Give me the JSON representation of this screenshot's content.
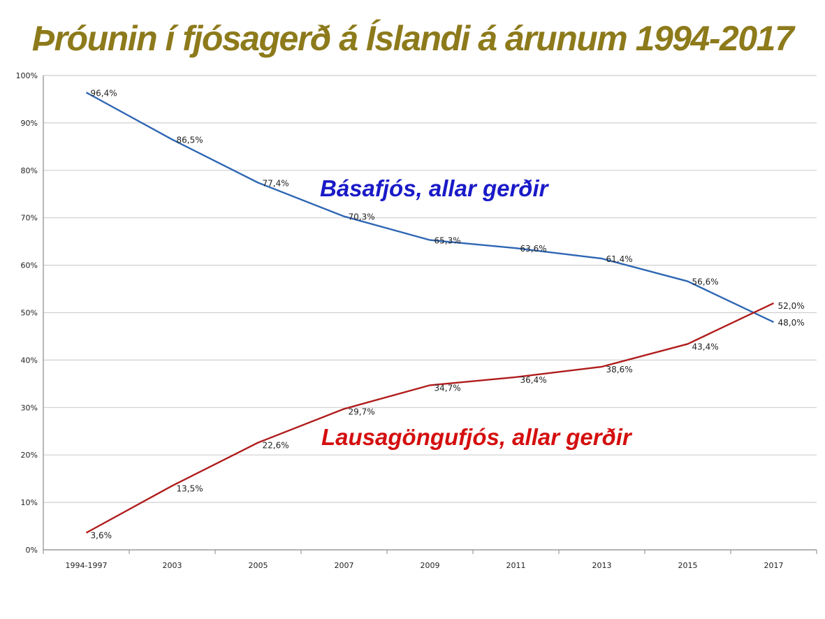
{
  "chart_data": {
    "type": "line",
    "title": "Þróunin í fjósagerð á Íslandi á árunum 1994-2017",
    "categories": [
      "1994-1997",
      "2003",
      "2005",
      "2007",
      "2009",
      "2011",
      "2013",
      "2015",
      "2017"
    ],
    "series": [
      {
        "name": "Básafjós, allar gerðir",
        "color": "#2e66b3",
        "label_color": "#1a1ac8",
        "values": [
          96.4,
          86.5,
          77.4,
          70.3,
          65.3,
          63.6,
          61.4,
          56.6,
          48.0
        ],
        "data_labels": [
          "96,4%",
          "86,5%",
          "77,4%",
          "70,3%",
          "65,3%",
          "63,6%",
          "61,4%",
          "56,6%",
          "48,0%"
        ]
      },
      {
        "name": "Lausagöngufjós, allar gerðir",
        "color": "#b01c1c",
        "label_color": "#d40f0f",
        "values": [
          3.6,
          13.5,
          22.6,
          29.7,
          34.7,
          36.4,
          38.6,
          43.4,
          52.0
        ],
        "data_labels": [
          "3,6%",
          "13,5%",
          "22,6%",
          "29,7%",
          "34,7%",
          "36,4%",
          "38,6%",
          "43,4%",
          "52,0%"
        ]
      }
    ],
    "ylim": [
      0,
      100
    ],
    "yticks": [
      0,
      10,
      20,
      30,
      40,
      50,
      60,
      70,
      80,
      90,
      100
    ],
    "ytick_labels": [
      "0%",
      "10%",
      "20%",
      "30%",
      "40%",
      "50%",
      "60%",
      "70%",
      "80%",
      "90%",
      "100%"
    ],
    "grid": true,
    "colors": {
      "title": "#8d7a1b",
      "grid": "#cfcfcf",
      "axis": "#888888"
    }
  }
}
